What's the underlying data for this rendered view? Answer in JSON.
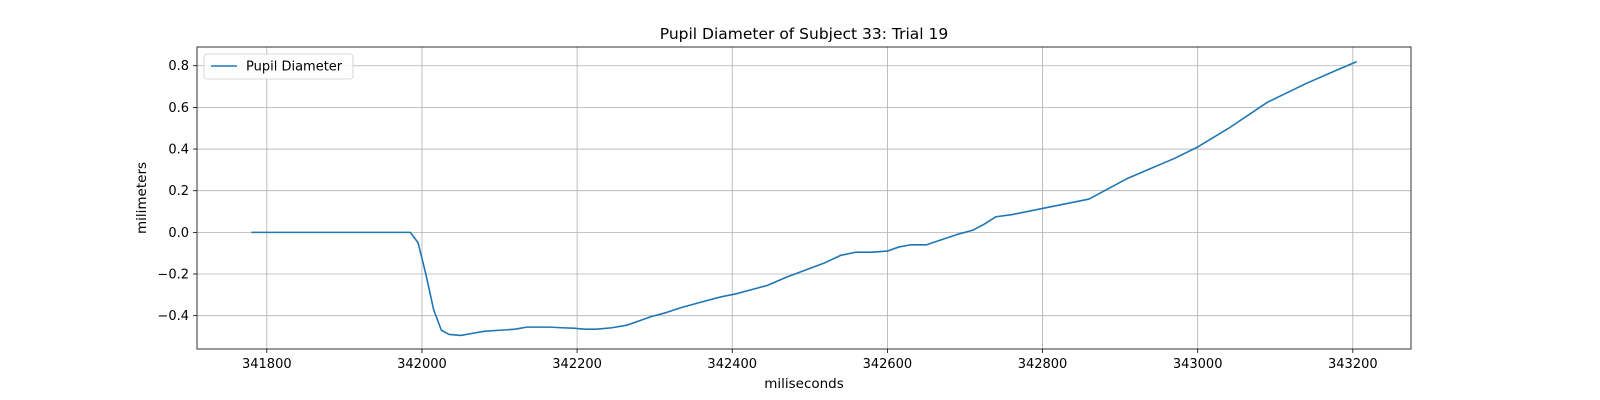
{
  "chart_data": {
    "type": "line",
    "title": "Pupil Diameter of Subject 33: Trial 19",
    "xlabel": "miliseconds",
    "ylabel": "milimeters",
    "xlim": [
      341710,
      343275
    ],
    "ylim": [
      -0.56,
      0.89
    ],
    "xticks": [
      341800,
      342000,
      342200,
      342400,
      342600,
      342800,
      343000,
      343200
    ],
    "yticks": [
      -0.4,
      -0.2,
      0.0,
      0.2,
      0.4,
      0.6,
      0.8
    ],
    "xtick_labels": [
      "341800",
      "342000",
      "342200",
      "342400",
      "342600",
      "342800",
      "343000",
      "343200"
    ],
    "ytick_labels": [
      "−0.4",
      "−0.2",
      "0.0",
      "0.2",
      "0.4",
      "0.6",
      "0.8"
    ],
    "grid": true,
    "legend": {
      "position": "upper-left",
      "entries": [
        "Pupil Diameter"
      ]
    },
    "series": [
      {
        "name": "Pupil Diameter",
        "color": "#1f77b4",
        "x": [
          341780,
          341985,
          341995,
          342005,
          342015,
          342025,
          342035,
          342050,
          342065,
          342080,
          342100,
          342120,
          342135,
          342150,
          342165,
          342180,
          342195,
          342210,
          342225,
          342245,
          342265,
          342280,
          342295,
          342315,
          342335,
          342360,
          342385,
          342405,
          342425,
          342445,
          342470,
          342495,
          342520,
          342540,
          342560,
          342580,
          342600,
          342615,
          342630,
          342650,
          342670,
          342690,
          342710,
          342725,
          342740,
          342760,
          342800,
          342860,
          342910,
          342970,
          343000,
          343040,
          343090,
          343140,
          343180,
          343205
        ],
        "y": [
          0.0,
          0.0,
          -0.05,
          -0.2,
          -0.37,
          -0.47,
          -0.49,
          -0.495,
          -0.485,
          -0.475,
          -0.47,
          -0.465,
          -0.455,
          -0.455,
          -0.455,
          -0.458,
          -0.46,
          -0.465,
          -0.465,
          -0.458,
          -0.445,
          -0.425,
          -0.405,
          -0.385,
          -0.36,
          -0.335,
          -0.31,
          -0.295,
          -0.275,
          -0.255,
          -0.215,
          -0.18,
          -0.145,
          -0.11,
          -0.095,
          -0.095,
          -0.09,
          -0.07,
          -0.06,
          -0.06,
          -0.035,
          -0.01,
          0.01,
          0.04,
          0.075,
          0.085,
          0.115,
          0.16,
          0.26,
          0.355,
          0.41,
          0.5,
          0.625,
          0.715,
          0.78,
          0.82
        ]
      }
    ]
  }
}
